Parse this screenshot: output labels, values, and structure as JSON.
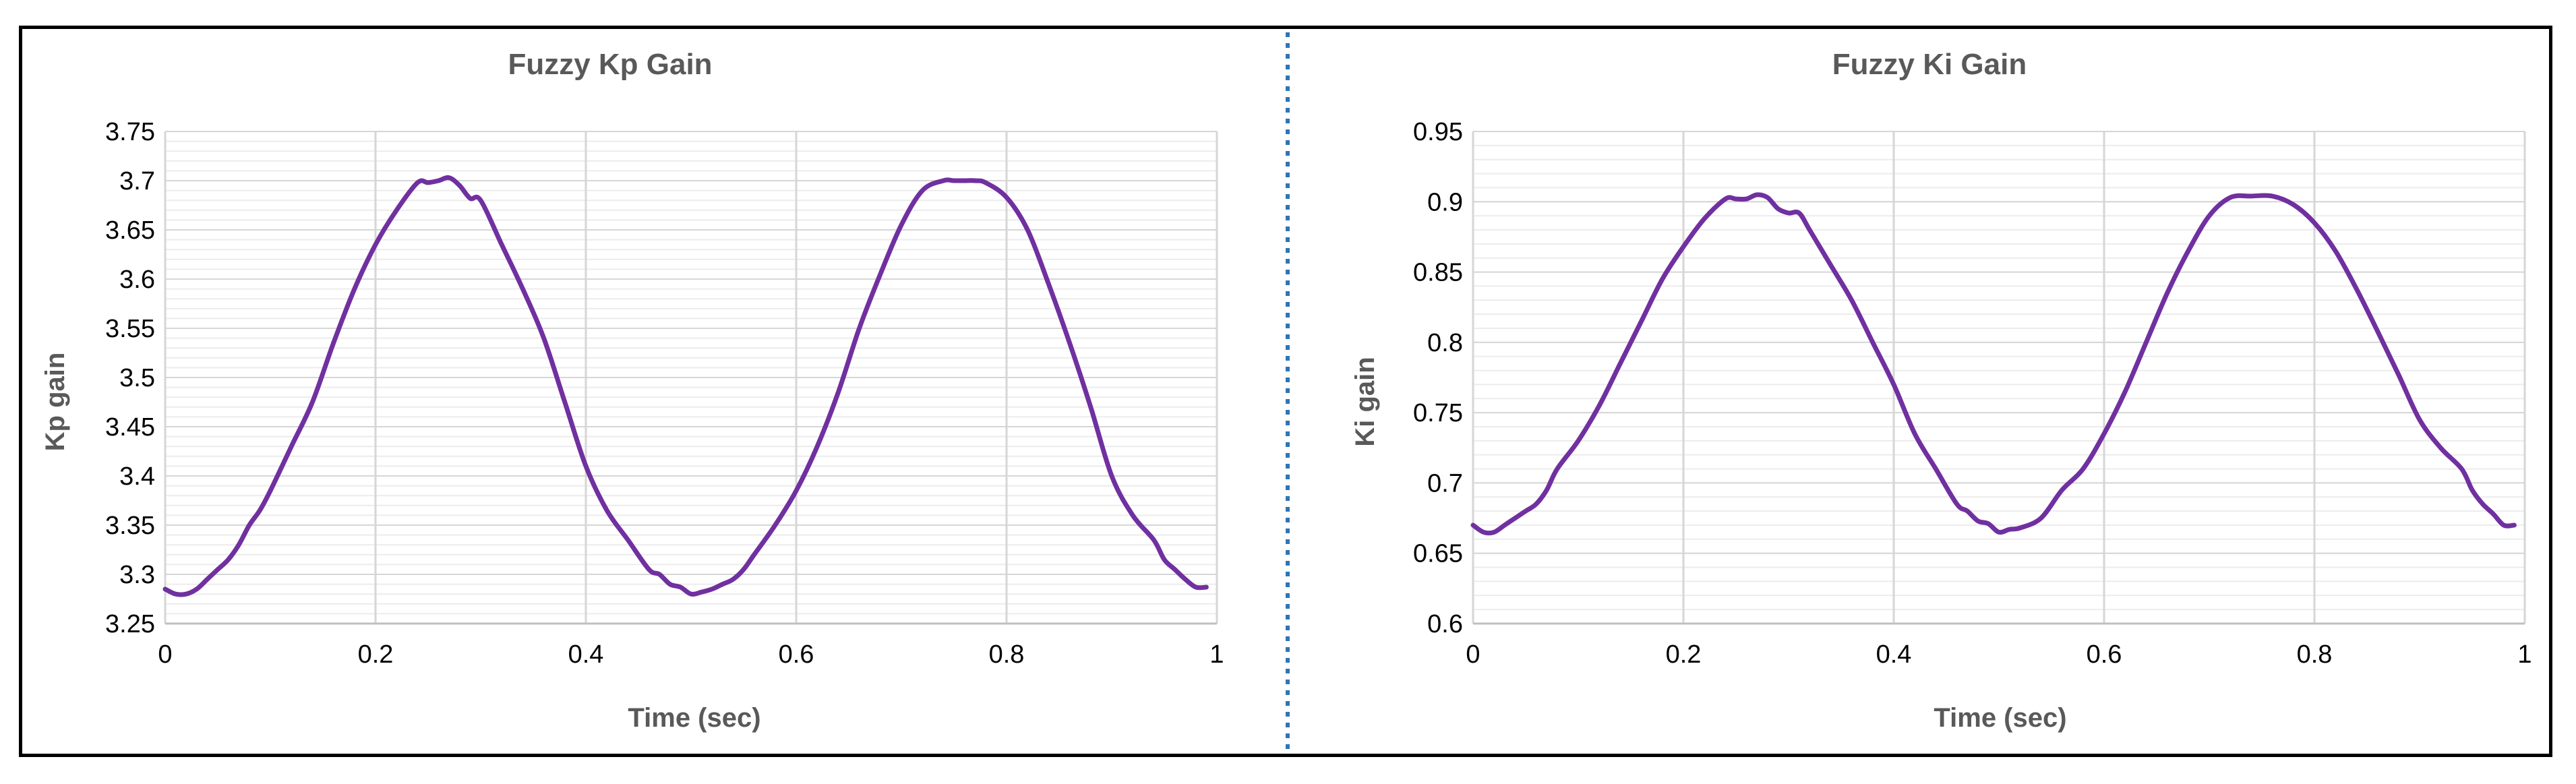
{
  "chart_data": [
    {
      "type": "line",
      "title": "Fuzzy Kp Gain",
      "xlabel": "Time (sec)",
      "ylabel": "Kp gain",
      "xlim": [
        0,
        1
      ],
      "ylim": [
        3.25,
        3.75
      ],
      "x_ticks": [
        0,
        0.2,
        0.4,
        0.6,
        0.8,
        1
      ],
      "x_tick_labels": [
        "0",
        "0.2",
        "0.4",
        "0.6",
        "0.8",
        "1"
      ],
      "y_ticks": [
        3.25,
        3.3,
        3.35,
        3.4,
        3.45,
        3.5,
        3.55,
        3.6,
        3.65,
        3.7,
        3.75
      ],
      "y_tick_labels": [
        "3.25",
        "3.3",
        "3.35",
        "3.4",
        "3.45",
        "3.5",
        "3.55",
        "3.6",
        "3.65",
        "3.7",
        "3.75"
      ],
      "grid": true,
      "legend": "none",
      "series": [
        {
          "color": "#7030a0",
          "x": [
            0,
            0.01,
            0.02,
            0.03,
            0.04,
            0.05,
            0.06,
            0.07,
            0.08,
            0.09,
            0.1,
            0.12,
            0.14,
            0.16,
            0.18,
            0.2,
            0.22,
            0.24,
            0.25,
            0.26,
            0.27,
            0.28,
            0.29,
            0.3,
            0.32,
            0.34,
            0.36,
            0.38,
            0.4,
            0.42,
            0.44,
            0.46,
            0.47,
            0.48,
            0.49,
            0.5,
            0.51,
            0.52,
            0.53,
            0.54,
            0.55,
            0.56,
            0.58,
            0.6,
            0.62,
            0.64,
            0.66,
            0.68,
            0.7,
            0.72,
            0.74,
            0.75,
            0.76,
            0.77,
            0.78,
            0.8,
            0.82,
            0.84,
            0.86,
            0.88,
            0.9,
            0.92,
            0.94,
            0.95,
            0.96,
            0.97,
            0.98,
            0.99
          ],
          "y": [
            3.285,
            3.28,
            3.28,
            3.285,
            3.295,
            3.305,
            3.315,
            3.33,
            3.35,
            3.365,
            3.385,
            3.43,
            3.475,
            3.535,
            3.59,
            3.635,
            3.67,
            3.698,
            3.698,
            3.7,
            3.703,
            3.695,
            3.682,
            3.68,
            3.635,
            3.59,
            3.54,
            3.475,
            3.41,
            3.365,
            3.335,
            3.305,
            3.3,
            3.29,
            3.287,
            3.28,
            3.282,
            3.285,
            3.29,
            3.295,
            3.305,
            3.32,
            3.35,
            3.385,
            3.43,
            3.485,
            3.55,
            3.605,
            3.655,
            3.69,
            3.7,
            3.7,
            3.7,
            3.7,
            3.698,
            3.683,
            3.65,
            3.595,
            3.535,
            3.47,
            3.4,
            3.36,
            3.335,
            3.315,
            3.305,
            3.295,
            3.287,
            3.287
          ]
        }
      ]
    },
    {
      "type": "line",
      "title": "Fuzzy Ki Gain",
      "xlabel": "Time (sec)",
      "ylabel": "Ki gain",
      "xlim": [
        0,
        1
      ],
      "ylim": [
        0.6,
        0.95
      ],
      "x_ticks": [
        0,
        0.2,
        0.4,
        0.6,
        0.8,
        1
      ],
      "x_tick_labels": [
        "0",
        "0.2",
        "0.4",
        "0.6",
        "0.8",
        "1"
      ],
      "y_ticks": [
        0.6,
        0.65,
        0.7,
        0.75,
        0.8,
        0.85,
        0.9,
        0.95
      ],
      "y_tick_labels": [
        "0.6",
        "0.65",
        "0.7",
        "0.75",
        "0.8",
        "0.85",
        "0.9",
        "0.95"
      ],
      "grid": true,
      "legend": "none",
      "series": [
        {
          "color": "#7030a0",
          "x": [
            0,
            0.01,
            0.02,
            0.03,
            0.04,
            0.05,
            0.06,
            0.07,
            0.08,
            0.1,
            0.12,
            0.14,
            0.16,
            0.18,
            0.2,
            0.22,
            0.24,
            0.25,
            0.26,
            0.27,
            0.28,
            0.29,
            0.3,
            0.31,
            0.32,
            0.34,
            0.36,
            0.38,
            0.4,
            0.42,
            0.44,
            0.46,
            0.47,
            0.48,
            0.49,
            0.5,
            0.51,
            0.52,
            0.54,
            0.56,
            0.58,
            0.6,
            0.62,
            0.64,
            0.66,
            0.68,
            0.7,
            0.72,
            0.74,
            0.76,
            0.78,
            0.8,
            0.82,
            0.84,
            0.86,
            0.88,
            0.9,
            0.92,
            0.94,
            0.95,
            0.96,
            0.97,
            0.98,
            0.99
          ],
          "y": [
            0.67,
            0.665,
            0.665,
            0.67,
            0.675,
            0.68,
            0.685,
            0.695,
            0.71,
            0.73,
            0.755,
            0.785,
            0.815,
            0.845,
            0.868,
            0.888,
            0.902,
            0.902,
            0.902,
            0.905,
            0.903,
            0.895,
            0.892,
            0.892,
            0.88,
            0.855,
            0.83,
            0.8,
            0.77,
            0.735,
            0.71,
            0.685,
            0.68,
            0.673,
            0.671,
            0.665,
            0.667,
            0.668,
            0.675,
            0.695,
            0.71,
            0.735,
            0.765,
            0.8,
            0.835,
            0.865,
            0.89,
            0.903,
            0.904,
            0.904,
            0.898,
            0.885,
            0.865,
            0.838,
            0.808,
            0.777,
            0.745,
            0.725,
            0.71,
            0.695,
            0.685,
            0.678,
            0.67,
            0.67
          ]
        }
      ]
    }
  ]
}
